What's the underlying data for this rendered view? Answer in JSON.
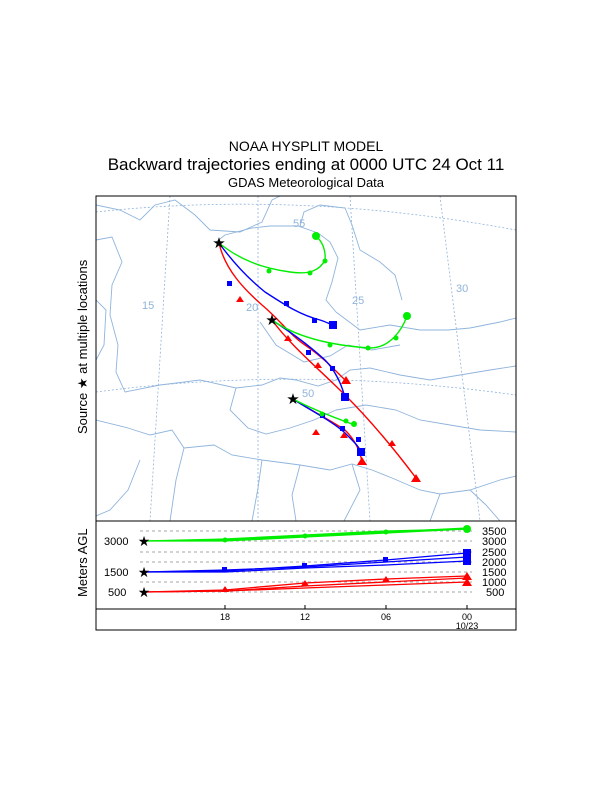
{
  "header": {
    "title": "NOAA HYSPLIT MODEL",
    "subtitle": "Backward trajectories ending at 0000 UTC 24 Oct 11",
    "data_source": "GDAS Meteorological Data"
  },
  "side_labels": {
    "source_prefix": "Source",
    "source_star": "★",
    "source_suffix": "at multiple locations",
    "agl": "Meters AGL"
  },
  "colors": {
    "map_lines": "#8fb4dc",
    "grid": "#8fb4dc",
    "red": "#ff0000",
    "blue": "#0000ff",
    "green": "#00ee00",
    "star": "#000000"
  },
  "chart_data": {
    "type": "line",
    "map": {
      "grid_labels": [
        "55",
        "15",
        "20",
        "25",
        "30",
        "50"
      ]
    },
    "height_panel": {
      "left_ticks": [
        "3000",
        "1500",
        "500"
      ],
      "right_ticks": [
        "3500",
        "3000",
        "2500",
        "2000",
        "1500",
        "1000",
        "500"
      ],
      "x_ticks": [
        "18",
        "12",
        "06",
        "00"
      ],
      "date_label": "10/23"
    },
    "series": [
      {
        "color": "red",
        "marker": "triangle",
        "start_height": 500,
        "end_heights": [
          1050,
          1130,
          1180
        ]
      },
      {
        "color": "blue",
        "marker": "square",
        "start_height": 1500,
        "end_heights": [
          2000,
          2200,
          2420
        ]
      },
      {
        "color": "green",
        "marker": "circle",
        "start_height": 3000,
        "end_heights": [
          3450,
          3470,
          3490
        ]
      }
    ]
  }
}
